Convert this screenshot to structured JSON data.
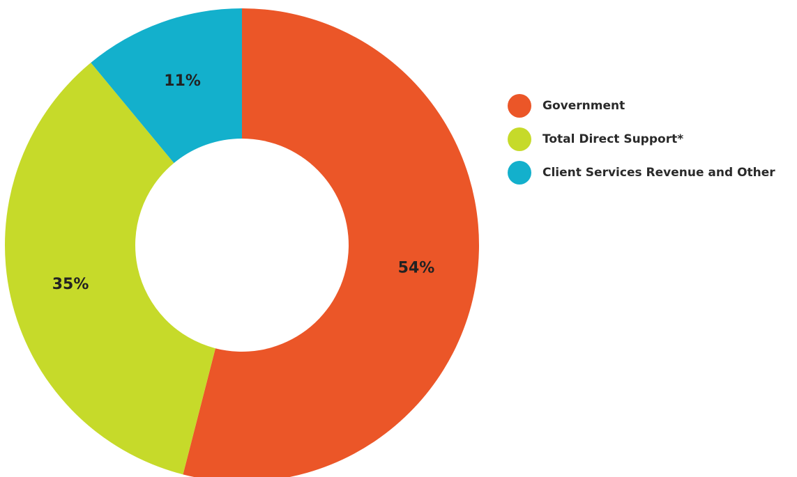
{
  "chart_data": {
    "type": "pie",
    "donut": true,
    "title": "",
    "categories": [
      "Government",
      "Total Direct Support*",
      "Client Services Revenue and Other"
    ],
    "values": [
      54,
      35,
      11
    ],
    "value_labels": [
      "54%",
      "35%",
      "11%"
    ],
    "colors": [
      "#eb5628",
      "#c6da2a",
      "#13b0cc"
    ],
    "legend": {
      "placement": "right",
      "entries": [
        {
          "label": "Government",
          "color": "#eb5628"
        },
        {
          "label": "Total Direct Support*",
          "color": "#c6da2a"
        },
        {
          "label": "Client Services Revenue and Other",
          "color": "#13b0cc"
        }
      ]
    }
  }
}
